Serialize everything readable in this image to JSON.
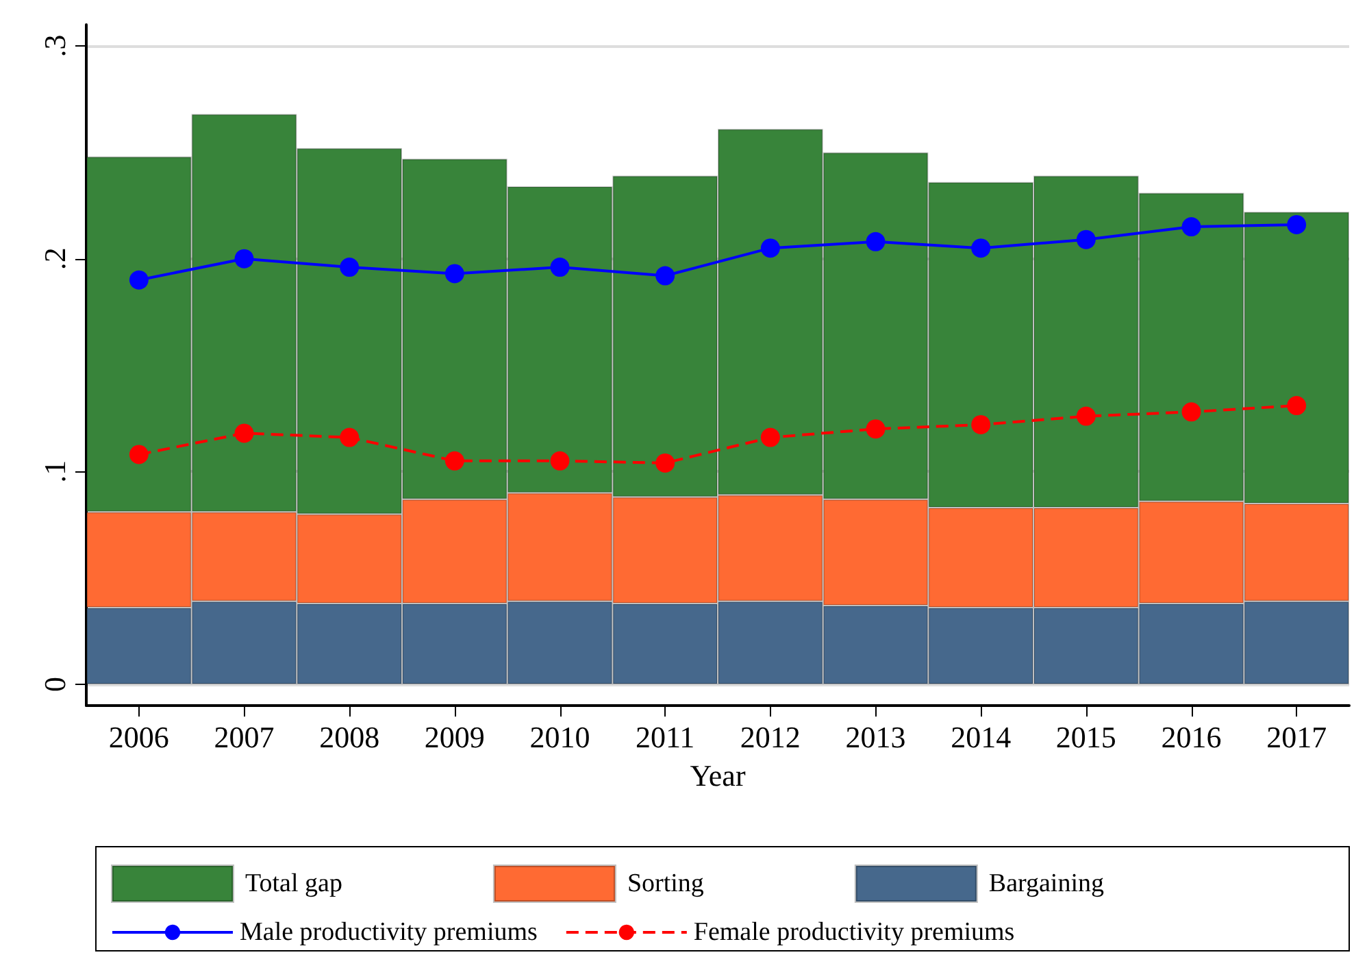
{
  "chart_data": {
    "type": "bar",
    "xlabel": "Year",
    "stacked": true,
    "categories": [
      "2006",
      "2007",
      "2008",
      "2009",
      "2010",
      "2011",
      "2012",
      "2013",
      "2014",
      "2015",
      "2016",
      "2017"
    ],
    "series": [
      {
        "name": "Bargaining",
        "color": "#46688c",
        "values": [
          0.036,
          0.039,
          0.038,
          0.038,
          0.039,
          0.038,
          0.039,
          0.037,
          0.036,
          0.036,
          0.038,
          0.039
        ]
      },
      {
        "name": "Sorting",
        "color": "#ff6a33",
        "values": [
          0.045,
          0.042,
          0.042,
          0.049,
          0.051,
          0.05,
          0.05,
          0.05,
          0.047,
          0.047,
          0.048,
          0.046
        ]
      },
      {
        "name": "Total gap",
        "color": "#38843a",
        "values": [
          0.167,
          0.187,
          0.172,
          0.16,
          0.144,
          0.151,
          0.172,
          0.163,
          0.153,
          0.156,
          0.145,
          0.137
        ]
      },
      {
        "name": "Male productivity premiums",
        "type": "line",
        "color": "#0000ff",
        "marker": "circle",
        "line_style": "solid",
        "values": [
          0.19,
          0.2,
          0.196,
          0.193,
          0.196,
          0.192,
          0.205,
          0.208,
          0.205,
          0.209,
          0.215,
          0.216
        ]
      },
      {
        "name": "Female productivity premiums",
        "type": "line",
        "color": "#ff0000",
        "marker": "circle",
        "line_style": "dashed",
        "values": [
          0.108,
          0.118,
          0.116,
          0.105,
          0.105,
          0.104,
          0.116,
          0.12,
          0.122,
          0.126,
          0.128,
          0.131
        ]
      }
    ],
    "ylim": [
      -0.01,
      0.31
    ],
    "yticks": [
      0,
      {
        "value": 0.1,
        "label": ".1"
      },
      {
        "value": 0.2,
        "label": ".2"
      },
      {
        "value": 0.3,
        "label": ".3"
      }
    ],
    "grid": "y",
    "legend": "bottom"
  }
}
